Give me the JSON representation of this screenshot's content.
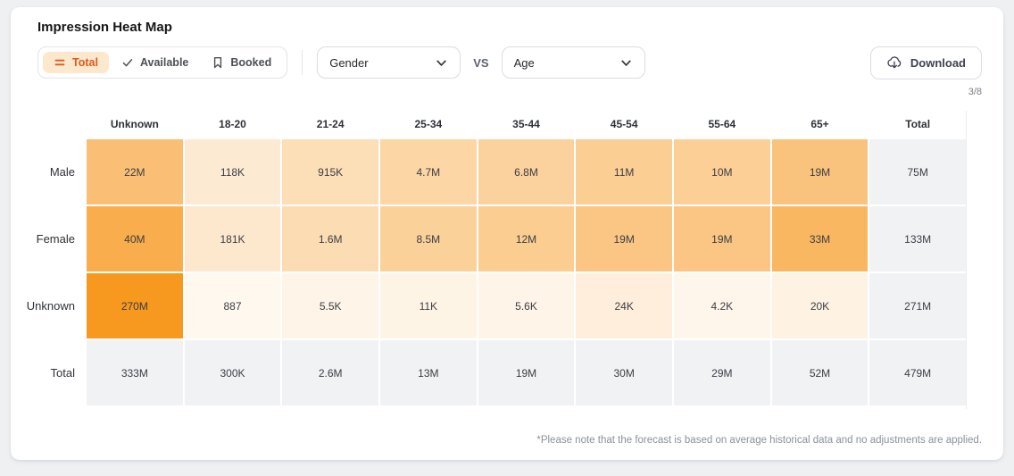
{
  "header": {
    "title": "Impression Heat Map"
  },
  "toolbar": {
    "tabs": [
      {
        "label": "Total",
        "icon": "equals-icon",
        "active": true
      },
      {
        "label": "Available",
        "icon": "check-icon",
        "active": false
      },
      {
        "label": "Booked",
        "icon": "bookmark-icon",
        "active": false
      }
    ],
    "dimension_row": "Gender",
    "vs_label": "VS",
    "dimension_col": "Age",
    "download_label": "Download",
    "page_indicator": "3/8"
  },
  "colors": {
    "heat_base_rgb": "247,152,31",
    "accent": "#df5a1f",
    "active_tab_bg": "#fce8cd",
    "total_cell_bg": "#f1f2f4"
  },
  "chart_data": {
    "type": "heatmap",
    "title": "Impression Heat Map",
    "x_dimension": "Age",
    "y_dimension": "Gender",
    "columns": [
      "Unknown",
      "18-20",
      "21-24",
      "25-34",
      "35-44",
      "45-54",
      "55-64",
      "65+",
      "Total"
    ],
    "rows": [
      {
        "label": "Male",
        "cells": [
          {
            "value": "22M",
            "heat": 0.62
          },
          {
            "value": "118K",
            "heat": 0.2
          },
          {
            "value": "915K",
            "heat": 0.32
          },
          {
            "value": "4.7M",
            "heat": 0.4
          },
          {
            "value": "6.8M",
            "heat": 0.44
          },
          {
            "value": "11M",
            "heat": 0.48
          },
          {
            "value": "10M",
            "heat": 0.47
          },
          {
            "value": "19M",
            "heat": 0.58
          },
          {
            "value": "75M",
            "heat": null
          }
        ]
      },
      {
        "label": "Female",
        "cells": [
          {
            "value": "40M",
            "heat": 0.8
          },
          {
            "value": "181K",
            "heat": 0.22
          },
          {
            "value": "1.6M",
            "heat": 0.34
          },
          {
            "value": "8.5M",
            "heat": 0.45
          },
          {
            "value": "12M",
            "heat": 0.49
          },
          {
            "value": "19M",
            "heat": 0.55
          },
          {
            "value": "19M",
            "heat": 0.55
          },
          {
            "value": "33M",
            "heat": 0.7
          },
          {
            "value": "133M",
            "heat": null
          }
        ]
      },
      {
        "label": "Unknown",
        "cells": [
          {
            "value": "270M",
            "heat": 1.0
          },
          {
            "value": "887",
            "heat": 0.07
          },
          {
            "value": "5.5K",
            "heat": 0.1
          },
          {
            "value": "11K",
            "heat": 0.11
          },
          {
            "value": "5.6K",
            "heat": 0.1
          },
          {
            "value": "24K",
            "heat": 0.16
          },
          {
            "value": "4.2K",
            "heat": 0.09
          },
          {
            "value": "20K",
            "heat": 0.13
          },
          {
            "value": "271M",
            "heat": null
          }
        ]
      },
      {
        "label": "Total",
        "cells": [
          {
            "value": "333M",
            "heat": null
          },
          {
            "value": "300K",
            "heat": null
          },
          {
            "value": "2.6M",
            "heat": null
          },
          {
            "value": "13M",
            "heat": null
          },
          {
            "value": "19M",
            "heat": null
          },
          {
            "value": "30M",
            "heat": null
          },
          {
            "value": "29M",
            "heat": null
          },
          {
            "value": "52M",
            "heat": null
          },
          {
            "value": "479M",
            "heat": null
          }
        ]
      }
    ]
  },
  "footnote": "*Please note that the forecast is based on average historical data and no adjustments are applied."
}
